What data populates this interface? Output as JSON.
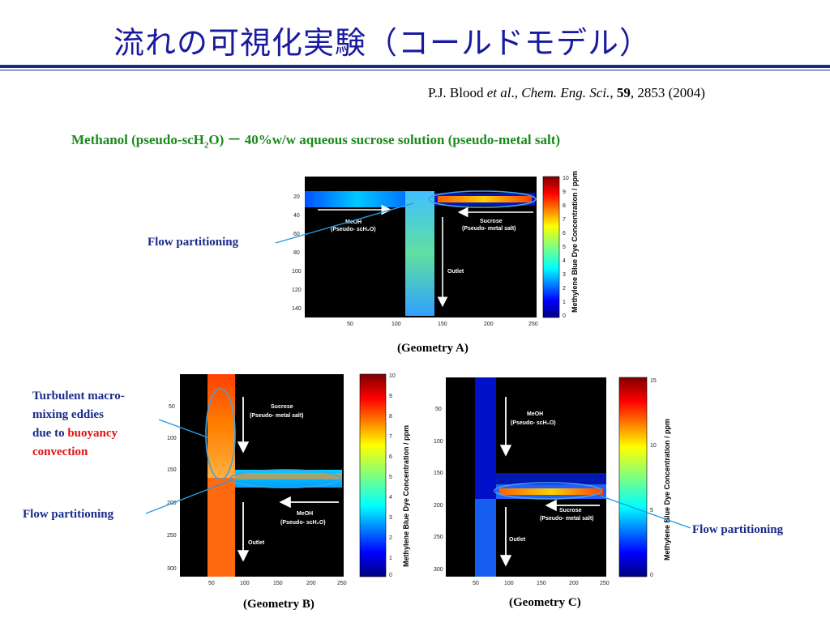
{
  "slide": {
    "title": "流れの可視化実験（コールドモデル）",
    "citation": {
      "authors": "P.J. Blood",
      "etal": "et al",
      "journal": "Chem. Eng. Sci.",
      "volume": "59",
      "pages_year": ", 2853 (2004)"
    },
    "subtitle": {
      "part1": "Methanol (pseudo-scH",
      "sub": "2",
      "part2": "O) － 40%w/w aqueous sucrose solution (pseudo-metal salt)"
    }
  },
  "annotations": {
    "flow_partitioning": "Flow partitioning",
    "turbulent_line1": "Turbulent macro-",
    "turbulent_line2": "mixing eddies",
    "turbulent_line3": "due to",
    "turbulent_red1": "buoyancy",
    "turbulent_red2": "convection"
  },
  "figures": {
    "geometry_a": {
      "caption": "(Geometry A)",
      "x_ticks": [
        "50",
        "100",
        "150",
        "200",
        "250"
      ],
      "y_ticks": [
        "20",
        "40",
        "60",
        "80",
        "100",
        "120",
        "140"
      ],
      "colorbar_ticks": [
        "10",
        "9",
        "8",
        "7",
        "6",
        "5",
        "4",
        "3",
        "2",
        "1",
        "0"
      ],
      "colorbar_label": "Methylene Blue Dye Concentration / ppm",
      "meoh": "MeOH",
      "meoh_sub": "(Pseudo- scH₂O)",
      "sucrose": "Sucrose",
      "sucrose_sub": "(Pseudo- metal salt)",
      "outlet": "Outlet"
    },
    "geometry_b": {
      "caption": "(Geometry B)",
      "x_ticks": [
        "50",
        "100",
        "150",
        "200",
        "250"
      ],
      "y_ticks": [
        "50",
        "100",
        "150",
        "200",
        "250",
        "300"
      ],
      "colorbar_ticks": [
        "10",
        "9",
        "8",
        "7",
        "6",
        "5",
        "4",
        "3",
        "2",
        "1",
        "0"
      ],
      "colorbar_label": "Methylene Blue Dye Concentration / ppm",
      "meoh": "MeOH",
      "meoh_sub": "(Pseudo- scH₂O)",
      "sucrose": "Sucrose",
      "sucrose_sub": "(Pseudo- metal salt)",
      "outlet": "Outlet"
    },
    "geometry_c": {
      "caption": "(Geometry C)",
      "x_ticks": [
        "50",
        "100",
        "150",
        "200",
        "250"
      ],
      "y_ticks": [
        "50",
        "100",
        "150",
        "200",
        "250",
        "300"
      ],
      "colorbar_ticks": [
        "15",
        "10",
        "5",
        "0"
      ],
      "colorbar_label": "Methylene Blue Dye Concentration / ppm",
      "meoh": "MeOH",
      "meoh_sub": "(Pseudo- scH₂O)",
      "sucrose": "Sucrose",
      "sucrose_sub": "(Pseudo- metal salt)",
      "outlet": "Outlet"
    }
  },
  "colors": {
    "title": "#1a1aa0",
    "subtitle": "#1a8a1a",
    "note": "#1a2a8a",
    "highlight": "#e01010",
    "ellipse": "#4aa0e0"
  }
}
